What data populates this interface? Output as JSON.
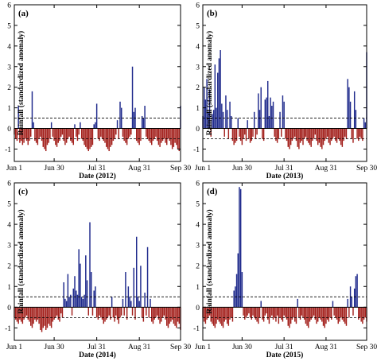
{
  "chart_data": [
    {
      "type": "bar",
      "panel_label": "(a)",
      "xlabel": "Date (2012)",
      "ylabel": "Rainfall (standardized anomaly)",
      "xtick_labels": [
        "Jun 1",
        "Jun 30",
        "Jul 31",
        "Aug 31",
        "Sep 30"
      ],
      "xtick_days": [
        0,
        29,
        60,
        91,
        121
      ],
      "ylim": [
        -1.6,
        6
      ],
      "yticks": [
        -1,
        0,
        1,
        2,
        3,
        4,
        5,
        6
      ],
      "threshold_lines": [
        0.5,
        -0.5
      ],
      "positive_color": "#1f2a8c",
      "negative_color": "#a3201c",
      "x_days": [
        0,
        1,
        2,
        3,
        4,
        5,
        6,
        7,
        8,
        9,
        10,
        11,
        12,
        13,
        14,
        15,
        16,
        17,
        18,
        19,
        20,
        21,
        22,
        23,
        24,
        25,
        26,
        27,
        28,
        29,
        30,
        31,
        32,
        33,
        34,
        35,
        36,
        37,
        38,
        39,
        40,
        41,
        42,
        43,
        44,
        45,
        46,
        47,
        48,
        49,
        50,
        51,
        52,
        53,
        54,
        55,
        56,
        57,
        58,
        59,
        60,
        61,
        62,
        63,
        64,
        65,
        66,
        67,
        68,
        69,
        70,
        71,
        72,
        73,
        74,
        75,
        76,
        77,
        78,
        79,
        80,
        81,
        82,
        83,
        84,
        85,
        86,
        87,
        88,
        89,
        90,
        91,
        92,
        93,
        94,
        95,
        96,
        97,
        98,
        99,
        100,
        101,
        102,
        103,
        104,
        105,
        106,
        107,
        108,
        109,
        110,
        111,
        112,
        113,
        114,
        115,
        116,
        117,
        118,
        119,
        120,
        121
      ],
      "values": [
        -0.3,
        -0.5,
        -0.6,
        1.1,
        -0.7,
        -0.6,
        -0.8,
        -0.7,
        -0.5,
        -0.6,
        -0.8,
        -0.6,
        -0.4,
        1.8,
        0.3,
        -0.6,
        -0.7,
        -0.8,
        -0.5,
        -0.4,
        -0.6,
        -0.9,
        -1.0,
        -1.1,
        -0.8,
        -0.7,
        -0.5,
        0.3,
        -0.4,
        -0.6,
        -0.8,
        -0.9,
        -0.7,
        -0.6,
        -0.4,
        -0.3,
        -0.6,
        -0.8,
        -0.7,
        -0.5,
        -0.4,
        -0.6,
        -0.7,
        -0.8,
        0.2,
        -0.4,
        -0.6,
        -0.3,
        0.3,
        -0.5,
        -0.6,
        -0.8,
        -0.9,
        -1.0,
        -1.1,
        -1.0,
        -0.9,
        -0.8,
        0.2,
        0.3,
        1.2,
        -0.5,
        -0.6,
        -0.4,
        -0.5,
        -0.6,
        -0.7,
        -0.9,
        -1.0,
        -1.1,
        -0.9,
        -0.8,
        -0.6,
        -0.5,
        -0.3,
        0.4,
        -0.5,
        1.3,
        1.0,
        -0.4,
        -0.6,
        -0.7,
        -0.8,
        -0.5,
        -0.4,
        -0.3,
        3.0,
        0.8,
        1.0,
        -0.6,
        -0.7,
        -0.8,
        -0.6,
        0.6,
        0.5,
        1.1,
        -0.4,
        -0.5,
        -0.6,
        -0.7,
        -0.8,
        -0.6,
        -0.5,
        -0.4,
        -0.6,
        -0.8,
        -0.9,
        -0.7,
        -0.6,
        -0.5,
        -0.7,
        -0.8,
        -0.5,
        -0.6,
        -0.8,
        -1.0,
        -0.9,
        -0.7,
        -0.8,
        -1.0,
        -1.1,
        1.1
      ]
    },
    {
      "type": "bar",
      "panel_label": "(b)",
      "xlabel": "Date (2013)",
      "ylabel": "Rainfall (standardized anomaly)",
      "xtick_labels": [
        "Jun 1",
        "Jun 30",
        "Jul 31",
        "Aug 31",
        "Sep 30"
      ],
      "xtick_days": [
        0,
        29,
        60,
        91,
        121
      ],
      "ylim": [
        -1.6,
        6
      ],
      "yticks": [
        -1,
        0,
        1,
        2,
        3,
        4,
        5,
        6
      ],
      "threshold_lines": [
        0.5,
        -0.5
      ],
      "positive_color": "#1f2a8c",
      "negative_color": "#a3201c",
      "x_days": [
        0,
        1,
        2,
        3,
        4,
        5,
        6,
        7,
        8,
        9,
        10,
        11,
        12,
        13,
        14,
        15,
        16,
        17,
        18,
        19,
        20,
        21,
        22,
        23,
        24,
        25,
        26,
        27,
        28,
        29,
        30,
        31,
        32,
        33,
        34,
        35,
        36,
        37,
        38,
        39,
        40,
        41,
        42,
        43,
        44,
        45,
        46,
        47,
        48,
        49,
        50,
        51,
        52,
        53,
        54,
        55,
        56,
        57,
        58,
        59,
        60,
        61,
        62,
        63,
        64,
        65,
        66,
        67,
        68,
        69,
        70,
        71,
        72,
        73,
        74,
        75,
        76,
        77,
        78,
        79,
        80,
        81,
        82,
        83,
        84,
        85,
        86,
        87,
        88,
        89,
        90,
        91,
        92,
        93,
        94,
        95,
        96,
        97,
        98,
        99,
        100,
        101,
        102,
        103,
        104,
        105,
        106,
        107,
        108,
        109,
        110,
        111,
        112,
        113,
        114,
        115,
        116,
        117,
        118,
        119,
        120,
        121
      ],
      "values": [
        0.6,
        2.0,
        1.4,
        2.4,
        0.8,
        1.9,
        -0.4,
        0.7,
        0.9,
        3.1,
        1.0,
        2.7,
        3.4,
        3.8,
        1.2,
        0.8,
        -0.4,
        1.6,
        0.9,
        -0.5,
        1.3,
        0.6,
        -0.6,
        -0.8,
        -0.7,
        -0.6,
        0.5,
        -0.4,
        -0.6,
        -0.8,
        -0.5,
        -0.3,
        -0.6,
        0.4,
        -0.5,
        -0.7,
        -0.6,
        -0.4,
        0.8,
        -0.5,
        -0.3,
        1.7,
        0.9,
        2.0,
        -0.5,
        -0.6,
        1.4,
        1.5,
        2.3,
        0.6,
        1.5,
        1.1,
        1.3,
        -0.4,
        -0.6,
        -0.7,
        -0.5,
        0.8,
        -0.4,
        1.6,
        1.3,
        -0.5,
        -0.6,
        -0.9,
        -1.0,
        -0.8,
        -0.6,
        -0.5,
        -0.4,
        -0.6,
        -0.9,
        -1.0,
        -0.7,
        -0.6,
        -0.8,
        -0.5,
        -0.4,
        -0.6,
        -0.7,
        -0.8,
        -0.9,
        -0.6,
        -0.5,
        -0.3,
        -0.6,
        -0.8,
        -0.7,
        -0.9,
        -1.0,
        -0.8,
        -0.6,
        -0.5,
        -0.4,
        -0.7,
        -0.8,
        -0.6,
        -0.5,
        -0.4,
        -0.6,
        -0.7,
        -0.5,
        -0.6,
        -0.8,
        -0.9,
        -0.6,
        -0.4,
        -0.5,
        2.4,
        2.0,
        1.3,
        -0.5,
        -0.7,
        1.8,
        0.9,
        -0.5,
        -0.6,
        -0.4,
        -0.5,
        -0.6,
        0.5,
        0.3,
        3.7
      ]
    },
    {
      "type": "bar",
      "panel_label": "(c)",
      "xlabel": "Date (2014)",
      "ylabel": "Rainfall (standardized anomaly)",
      "xtick_labels": [
        "Jun 1",
        "Jun 30",
        "Jul 31",
        "Aug 31",
        "Sep 30"
      ],
      "xtick_days": [
        0,
        29,
        60,
        91,
        121
      ],
      "ylim": [
        -1.6,
        6
      ],
      "yticks": [
        -1,
        0,
        1,
        2,
        3,
        4,
        5,
        6
      ],
      "threshold_lines": [
        0.5,
        -0.5
      ],
      "positive_color": "#1f2a8c",
      "negative_color": "#a3201c",
      "x_days": [
        0,
        1,
        2,
        3,
        4,
        5,
        6,
        7,
        8,
        9,
        10,
        11,
        12,
        13,
        14,
        15,
        16,
        17,
        18,
        19,
        20,
        21,
        22,
        23,
        24,
        25,
        26,
        27,
        28,
        29,
        30,
        31,
        32,
        33,
        34,
        35,
        36,
        37,
        38,
        39,
        40,
        41,
        42,
        43,
        44,
        45,
        46,
        47,
        48,
        49,
        50,
        51,
        52,
        53,
        54,
        55,
        56,
        57,
        58,
        59,
        60,
        61,
        62,
        63,
        64,
        65,
        66,
        67,
        68,
        69,
        70,
        71,
        72,
        73,
        74,
        75,
        76,
        77,
        78,
        79,
        80,
        81,
        82,
        83,
        84,
        85,
        86,
        87,
        88,
        89,
        90,
        91,
        92,
        93,
        94,
        95,
        96,
        97,
        98,
        99,
        100,
        101,
        102,
        103,
        104,
        105,
        106,
        107,
        108,
        109,
        110,
        111,
        112,
        113,
        114,
        115,
        116,
        117,
        118,
        119,
        120,
        121
      ],
      "values": [
        -0.5,
        -0.6,
        -0.7,
        -0.8,
        -0.6,
        -0.7,
        -0.8,
        -0.6,
        -0.5,
        -0.4,
        -0.6,
        -0.7,
        -0.9,
        -1.0,
        -0.8,
        -0.6,
        -0.7,
        -0.6,
        -0.8,
        -1.1,
        -1.2,
        -1.0,
        -0.9,
        -1.1,
        -1.0,
        -0.8,
        -0.9,
        -1.0,
        -0.7,
        -0.6,
        -0.5,
        -0.4,
        -0.6,
        -0.7,
        -0.3,
        -0.5,
        1.2,
        0.4,
        0.3,
        1.6,
        0.5,
        0.6,
        -0.4,
        0.9,
        1.5,
        0.8,
        0.6,
        2.8,
        2.1,
        0.5,
        0.4,
        0.6,
        2.5,
        1.3,
        -0.4,
        4.1,
        1.7,
        -0.4,
        0.8,
        1.0,
        -0.5,
        -0.6,
        -0.4,
        -0.5,
        -0.6,
        -0.8,
        -0.7,
        -0.6,
        -0.5,
        -0.4,
        -0.6,
        0.5,
        -0.5,
        -0.7,
        -0.4,
        -0.6,
        -0.8,
        -0.5,
        -0.4,
        0.4,
        -0.4,
        1.7,
        -0.6,
        1.0,
        0.5,
        0.3,
        -0.4,
        1.9,
        -0.6,
        3.4,
        0.5,
        0.3,
        2.0,
        -0.5,
        -0.7,
        0.7,
        -0.4,
        2.9,
        -0.5,
        0.4,
        -0.7,
        -0.8,
        -0.6,
        -0.5,
        -0.4,
        -0.6,
        -0.8,
        -0.7,
        -0.5,
        -0.4,
        -0.6,
        -0.9,
        -1.0,
        -0.8,
        -0.7,
        -0.6,
        -0.8,
        -0.9,
        -1.0,
        -0.7,
        -0.8,
        -1.1
      ]
    },
    {
      "type": "bar",
      "panel_label": "(d)",
      "xlabel": "Date (2015)",
      "ylabel": "Rainfall (standardized anomaly)",
      "xtick_labels": [
        "Jun 1",
        "Jun 30",
        "Jul 31",
        "Aug 31",
        "Sep 30"
      ],
      "xtick_days": [
        0,
        29,
        60,
        91,
        121
      ],
      "ylim": [
        -1.6,
        6
      ],
      "yticks": [
        -1,
        0,
        1,
        2,
        3,
        4,
        5,
        6
      ],
      "threshold_lines": [
        0.5,
        -0.5
      ],
      "positive_color": "#1f2a8c",
      "negative_color": "#a3201c",
      "x_days": [
        0,
        1,
        2,
        3,
        4,
        5,
        6,
        7,
        8,
        9,
        10,
        11,
        12,
        13,
        14,
        15,
        16,
        17,
        18,
        19,
        20,
        21,
        22,
        23,
        24,
        25,
        26,
        27,
        28,
        29,
        30,
        31,
        32,
        33,
        34,
        35,
        36,
        37,
        38,
        39,
        40,
        41,
        42,
        43,
        44,
        45,
        46,
        47,
        48,
        49,
        50,
        51,
        52,
        53,
        54,
        55,
        56,
        57,
        58,
        59,
        60,
        61,
        62,
        63,
        64,
        65,
        66,
        67,
        68,
        69,
        70,
        71,
        72,
        73,
        74,
        75,
        76,
        77,
        78,
        79,
        80,
        81,
        82,
        83,
        84,
        85,
        86,
        87,
        88,
        89,
        90,
        91,
        92,
        93,
        94,
        95,
        96,
        97,
        98,
        99,
        100,
        101,
        102,
        103,
        104,
        105,
        106,
        107,
        108,
        109,
        110,
        111,
        112,
        113,
        114,
        115,
        116,
        117,
        118,
        119,
        120,
        121
      ],
      "values": [
        -0.5,
        -0.7,
        -0.8,
        -0.6,
        -0.5,
        -0.4,
        -0.7,
        -0.8,
        -0.9,
        -1.0,
        -0.8,
        -0.6,
        -0.7,
        -0.8,
        -0.9,
        -1.0,
        -0.7,
        -0.6,
        -0.8,
        -0.9,
        -0.6,
        -0.5,
        -0.7,
        0.8,
        1.0,
        1.6,
        2.6,
        5.8,
        5.7,
        1.7,
        -0.4,
        -0.6,
        -0.5,
        -0.4,
        -0.3,
        -0.5,
        -0.6,
        -0.4,
        -0.5,
        -0.6,
        -0.7,
        -0.8,
        -0.5,
        0.3,
        -0.6,
        -0.7,
        -0.4,
        -0.3,
        -0.6,
        -0.8,
        -0.5,
        -0.4,
        -0.6,
        -0.5,
        -0.7,
        -0.4,
        -0.8,
        -0.5,
        -0.6,
        -0.7,
        -0.4,
        -0.5,
        -0.6,
        -0.9,
        -1.0,
        -0.8,
        -0.6,
        -0.5,
        -0.7,
        -0.8,
        0.4,
        -0.5,
        -0.6,
        -0.4,
        -0.5,
        -0.6,
        -0.8,
        -0.9,
        -1.0,
        -0.7,
        -0.6,
        -0.5,
        -0.4,
        -0.6,
        -0.8,
        -0.7,
        -0.5,
        -0.6,
        -0.7,
        -0.9,
        -1.0,
        -0.8,
        -0.6,
        -0.7,
        -0.5,
        -0.6,
        0.3,
        -0.4,
        -0.5,
        -0.6,
        -0.8,
        -0.7,
        -0.5,
        -0.6,
        -0.7,
        -0.8,
        -0.9,
        0.4,
        -0.5,
        1.0,
        0.5,
        -0.4,
        0.9,
        1.5,
        1.6,
        -0.6,
        -0.5,
        -0.7,
        -0.8,
        -0.6,
        -0.5,
        -0.7
      ]
    }
  ]
}
